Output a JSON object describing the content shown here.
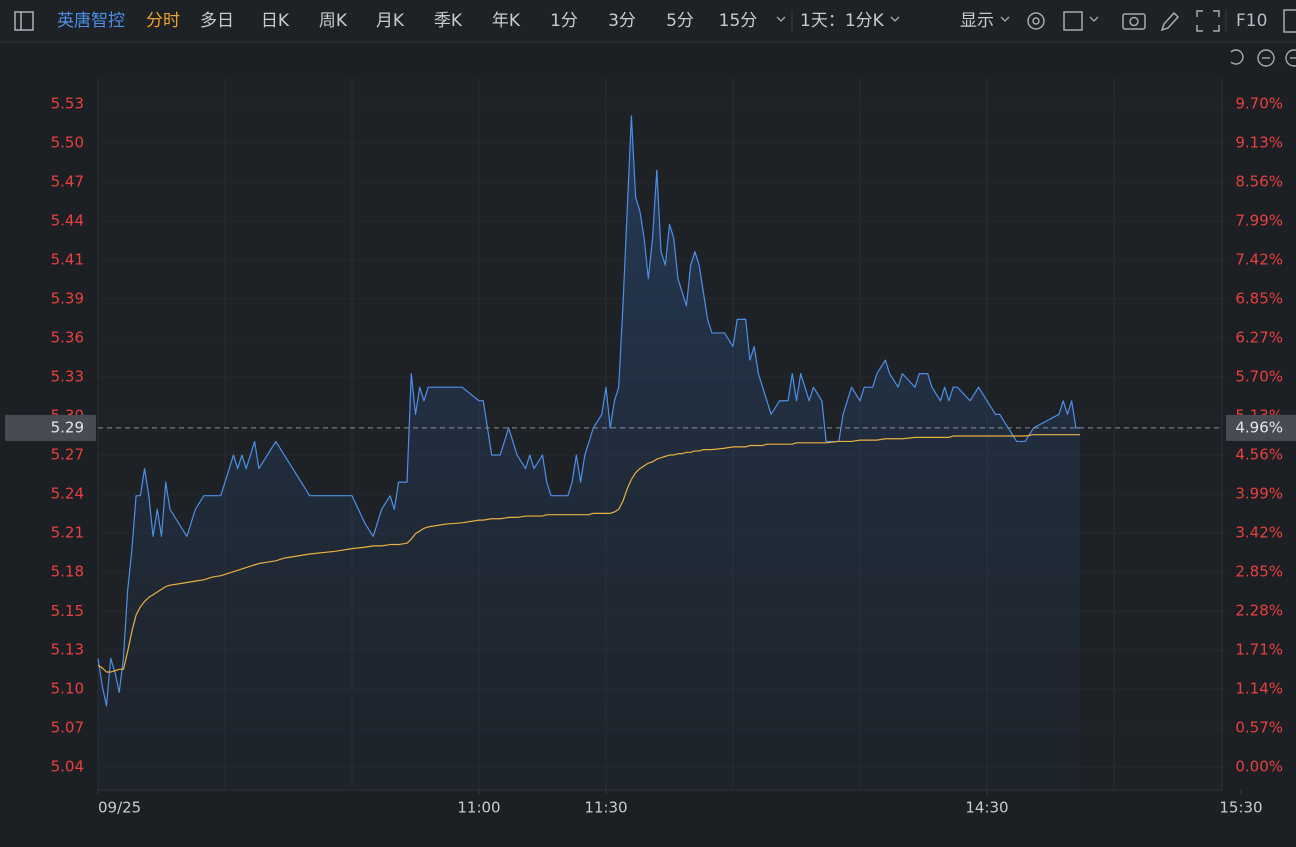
{
  "toolbar": {
    "stock": "英唐智控",
    "tabs": [
      "分时",
      "多日",
      "日K",
      "周K",
      "月K",
      "季K",
      "年K",
      "1分",
      "3分",
      "5分",
      "15分"
    ],
    "period": "1天：1分K",
    "display": "显示",
    "f10": "F10"
  },
  "chart_data": {
    "type": "line",
    "x": [
      "09:30",
      "09:31",
      "09:32",
      "09:33",
      "09:34",
      "09:35",
      "09:36",
      "09:37",
      "09:38",
      "09:39",
      "09:40",
      "09:41",
      "09:42",
      "09:43",
      "09:44",
      "09:45",
      "09:46",
      "09:47",
      "09:49",
      "09:51",
      "09:53",
      "09:55",
      "09:57",
      "09:59",
      "10:01",
      "10:02",
      "10:03",
      "10:04",
      "10:05",
      "10:06",
      "10:07",
      "10:08",
      "10:10",
      "10:12",
      "10:14",
      "10:16",
      "10:18",
      "10:20",
      "10:26",
      "10:30",
      "10:33",
      "10:35",
      "10:37",
      "10:39",
      "10:40",
      "10:41",
      "10:43",
      "10:44",
      "10:45",
      "10:46",
      "10:47",
      "10:48",
      "10:52",
      "10:56",
      "11:00",
      "11:01",
      "11:03",
      "11:05",
      "11:07",
      "11:08",
      "11:09",
      "11:11",
      "11:12",
      "11:13",
      "11:15",
      "11:16",
      "11:17",
      "11:21",
      "11:22",
      "11:23",
      "11:24",
      "11:25",
      "11:26",
      "11:27",
      "11:29",
      "13:00",
      "13:01",
      "13:02",
      "13:03",
      "13:04",
      "13:05",
      "13:06",
      "13:07",
      "13:08",
      "13:09",
      "13:10",
      "13:11",
      "13:12",
      "13:13",
      "13:14",
      "13:15",
      "13:16",
      "13:17",
      "13:18",
      "13:19",
      "13:20",
      "13:21",
      "13:22",
      "13:23",
      "13:24",
      "13:25",
      "13:28",
      "13:30",
      "13:31",
      "13:33",
      "13:34",
      "13:35",
      "13:36",
      "13:37",
      "13:38",
      "13:39",
      "13:41",
      "13:43",
      "13:44",
      "13:45",
      "13:46",
      "13:47",
      "13:48",
      "13:49",
      "13:51",
      "13:52",
      "13:55",
      "13:56",
      "13:57",
      "13:58",
      "14:00",
      "14:01",
      "14:03",
      "14:04",
      "14:06",
      "14:07",
      "14:09",
      "14:10",
      "14:13",
      "14:14",
      "14:16",
      "14:17",
      "14:19",
      "14:20",
      "14:21",
      "14:22",
      "14:23",
      "14:26",
      "14:28",
      "14:32",
      "14:33",
      "14:35",
      "14:37",
      "14:39",
      "14:41",
      "14:47",
      "14:48",
      "14:49",
      "14:50",
      "14:51",
      "14:52"
    ],
    "series": [
      {
        "color": "#4d8fe6",
        "values": [
          5.12,
          5.1,
          5.085,
          5.12,
          5.11,
          5.095,
          5.12,
          5.17,
          5.2,
          5.24,
          5.24,
          5.26,
          5.24,
          5.21,
          5.23,
          5.21,
          5.25,
          5.23,
          5.22,
          5.21,
          5.23,
          5.24,
          5.24,
          5.24,
          5.26,
          5.27,
          5.26,
          5.27,
          5.26,
          5.27,
          5.28,
          5.26,
          5.27,
          5.28,
          5.27,
          5.26,
          5.25,
          5.24,
          5.24,
          5.24,
          5.22,
          5.21,
          5.23,
          5.24,
          5.23,
          5.25,
          5.25,
          5.33,
          5.3,
          5.32,
          5.31,
          5.32,
          5.32,
          5.32,
          5.31,
          5.31,
          5.27,
          5.27,
          5.29,
          5.28,
          5.27,
          5.26,
          5.27,
          5.26,
          5.27,
          5.25,
          5.24,
          5.24,
          5.25,
          5.27,
          5.25,
          5.27,
          5.28,
          5.29,
          5.3,
          5.32,
          5.29,
          5.31,
          5.32,
          5.38,
          5.45,
          5.52,
          5.46,
          5.45,
          5.43,
          5.4,
          5.43,
          5.48,
          5.42,
          5.41,
          5.44,
          5.43,
          5.4,
          5.39,
          5.38,
          5.41,
          5.42,
          5.41,
          5.39,
          5.37,
          5.36,
          5.36,
          5.35,
          5.37,
          5.37,
          5.34,
          5.35,
          5.33,
          5.32,
          5.31,
          5.3,
          5.31,
          5.31,
          5.33,
          5.31,
          5.33,
          5.32,
          5.31,
          5.32,
          5.31,
          5.28,
          5.28,
          5.3,
          5.31,
          5.32,
          5.31,
          5.32,
          5.32,
          5.33,
          5.34,
          5.33,
          5.32,
          5.33,
          5.32,
          5.33,
          5.33,
          5.32,
          5.31,
          5.32,
          5.31,
          5.32,
          5.32,
          5.31,
          5.32,
          5.3,
          5.3,
          5.29,
          5.28,
          5.28,
          5.29,
          5.3,
          5.31,
          5.3,
          5.31,
          5.29,
          5.29
        ]
      },
      {
        "color": "#e8b040",
        "values": [
          5.115,
          5.113,
          5.11,
          5.11,
          5.111,
          5.112,
          5.112,
          5.125,
          5.14,
          5.152,
          5.158,
          5.162,
          5.165,
          5.167,
          5.169,
          5.171,
          5.173,
          5.174,
          5.175,
          5.176,
          5.177,
          5.178,
          5.18,
          5.181,
          5.183,
          5.184,
          5.185,
          5.186,
          5.187,
          5.188,
          5.189,
          5.19,
          5.191,
          5.192,
          5.194,
          5.195,
          5.196,
          5.197,
          5.199,
          5.201,
          5.202,
          5.203,
          5.203,
          5.204,
          5.204,
          5.204,
          5.205,
          5.208,
          5.212,
          5.214,
          5.216,
          5.217,
          5.219,
          5.22,
          5.222,
          5.222,
          5.223,
          5.223,
          5.224,
          5.224,
          5.224,
          5.225,
          5.225,
          5.225,
          5.225,
          5.226,
          5.226,
          5.226,
          5.226,
          5.226,
          5.226,
          5.226,
          5.226,
          5.227,
          5.227,
          5.227,
          5.227,
          5.228,
          5.23,
          5.236,
          5.245,
          5.252,
          5.257,
          5.26,
          5.262,
          5.264,
          5.265,
          5.267,
          5.268,
          5.269,
          5.27,
          5.27,
          5.271,
          5.271,
          5.272,
          5.272,
          5.273,
          5.273,
          5.274,
          5.274,
          5.274,
          5.275,
          5.276,
          5.276,
          5.276,
          5.277,
          5.277,
          5.277,
          5.277,
          5.278,
          5.278,
          5.278,
          5.278,
          5.278,
          5.279,
          5.279,
          5.279,
          5.279,
          5.279,
          5.279,
          5.279,
          5.28,
          5.28,
          5.28,
          5.28,
          5.281,
          5.281,
          5.281,
          5.281,
          5.282,
          5.282,
          5.282,
          5.282,
          5.283,
          5.283,
          5.283,
          5.283,
          5.283,
          5.283,
          5.283,
          5.284,
          5.284,
          5.284,
          5.284,
          5.284,
          5.284,
          5.284,
          5.284,
          5.284,
          5.285,
          5.285,
          5.285,
          5.285,
          5.285,
          5.285,
          5.285
        ]
      }
    ],
    "xticks": [
      {
        "value": "09:30",
        "label": "09/25"
      },
      "11:00",
      "11:30",
      "14:30",
      "15:30"
    ],
    "ylim": [
      5.023,
      5.548
    ],
    "yticks": [
      {
        "value": 5.04,
        "label": "5.04"
      },
      {
        "value": 5.0687,
        "label": "5.07"
      },
      {
        "value": 5.0975,
        "label": "5.10"
      },
      {
        "value": 5.1262,
        "label": "5.13"
      },
      {
        "value": 5.1548,
        "label": "5.15"
      },
      {
        "value": 5.1837,
        "label": "5.18"
      },
      {
        "value": 5.2125,
        "label": "5.21"
      },
      {
        "value": 5.2412,
        "label": "5.24"
      },
      {
        "value": 5.27,
        "label": "5.27"
      },
      {
        "value": 5.2987,
        "label": "5.30"
      },
      {
        "value": 5.3275,
        "label": "5.33"
      },
      {
        "value": 5.3562,
        "label": "5.36"
      },
      {
        "value": 5.3852,
        "label": "5.39"
      },
      {
        "value": 5.4137,
        "label": "5.41"
      },
      {
        "value": 5.4425,
        "label": "5.44"
      },
      {
        "value": 5.4712,
        "label": "5.47"
      },
      {
        "value": 5.5,
        "label": "5.50"
      },
      {
        "value": 5.5287,
        "label": "5.53"
      }
    ],
    "y2lim": [
      -0.336,
      10.077
    ],
    "y2ticks": [
      {
        "value": 0,
        "label": "0.00%"
      },
      {
        "value": 0.57,
        "label": "0.57%"
      },
      {
        "value": 1.141,
        "label": "1.14%"
      },
      {
        "value": 1.711,
        "label": "1.71%"
      },
      {
        "value": 2.282,
        "label": "2.28%"
      },
      {
        "value": 2.852,
        "label": "2.85%"
      },
      {
        "value": 3.422,
        "label": "3.42%"
      },
      {
        "value": 3.993,
        "label": "3.99%"
      },
      {
        "value": 4.563,
        "label": "4.56%"
      },
      {
        "value": 5.134,
        "label": "5.13%"
      },
      {
        "value": 5.704,
        "label": "5.70%"
      },
      {
        "value": 6.274,
        "label": "6.27%"
      },
      {
        "value": 6.845,
        "label": "6.85%"
      },
      {
        "value": 7.415,
        "label": "7.42%"
      },
      {
        "value": 7.986,
        "label": "7.99%"
      },
      {
        "value": 8.556,
        "label": "8.56%"
      },
      {
        "value": 9.126,
        "label": "9.13%"
      },
      {
        "value": 9.697,
        "label": "9.70%"
      }
    ],
    "last_price": 5.29,
    "last_change": {
      "value": 4.96,
      "label": "4.96%"
    },
    "grid": true
  }
}
